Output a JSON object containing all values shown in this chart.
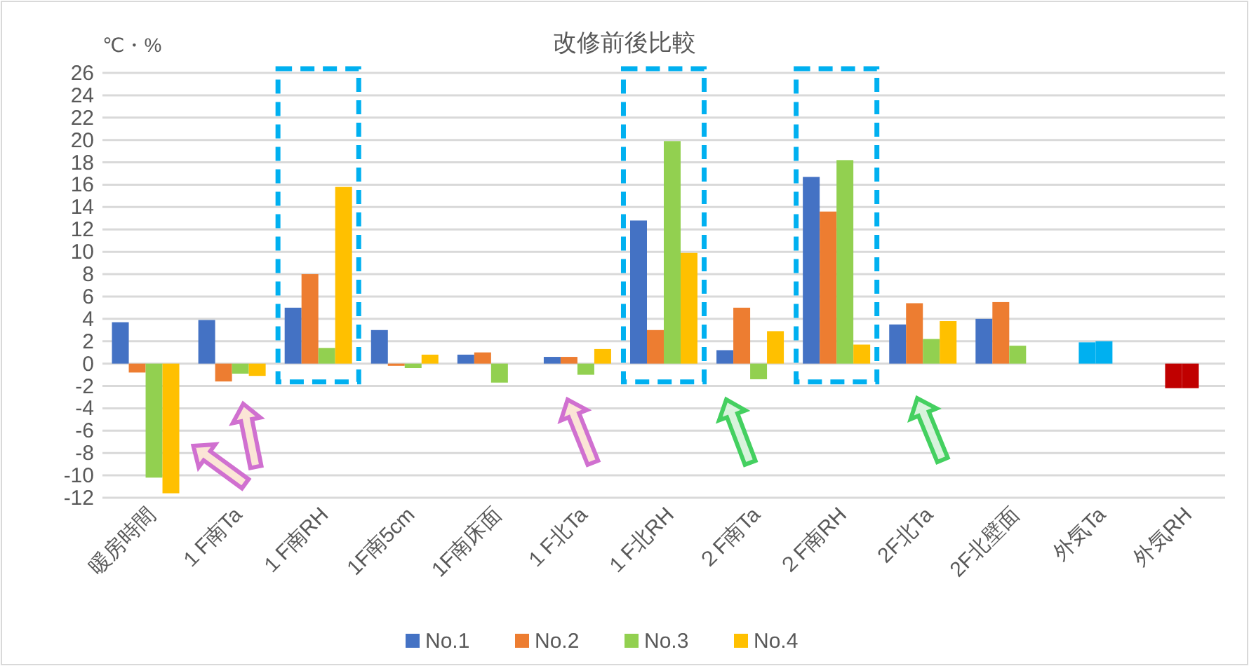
{
  "chart_data": {
    "type": "bar",
    "title": "改修前後比較",
    "ylabel": "℃・%",
    "categories": [
      "暖房時間",
      "１F南Ta",
      "１F南RH",
      "1F南5cm",
      "1F南床面",
      "１F北Ta",
      "１F北RH",
      "２F南Ta",
      "２F南RH",
      "2F北Ta",
      "2F北壁面",
      "外気Ta",
      "外気RH"
    ],
    "series": [
      {
        "name": "No.1",
        "color": "#4472c4",
        "values": [
          3.7,
          3.9,
          5.0,
          3.0,
          0.8,
          0.6,
          12.8,
          1.2,
          16.7,
          3.5,
          4.0,
          null,
          null
        ]
      },
      {
        "name": "No.2",
        "color": "#ed7d31",
        "colors": [
          "#ed7d31",
          "#ed7d31",
          "#ed7d31",
          "#ed7d31",
          "#ed7d31",
          "#ed7d31",
          "#ed7d31",
          "#ed7d31",
          "#ed7d31",
          "#ed7d31",
          "#ed7d31",
          "#00b0f0",
          "#c00000"
        ],
        "values": [
          -0.8,
          -1.6,
          8.0,
          -0.2,
          1.0,
          0.6,
          3.0,
          5.0,
          13.6,
          5.4,
          5.5,
          1.9,
          -2.2
        ]
      },
      {
        "name": "No.3",
        "color": "#92d050",
        "colors": [
          "#92d050",
          "#92d050",
          "#92d050",
          "#92d050",
          "#92d050",
          "#92d050",
          "#92d050",
          "#92d050",
          "#92d050",
          "#92d050",
          "#92d050",
          "#00b0f0",
          "#c00000"
        ],
        "values": [
          -10.2,
          -0.9,
          1.4,
          -0.4,
          -1.7,
          -1.0,
          19.9,
          -1.4,
          18.2,
          2.2,
          1.6,
          2.0,
          -2.2
        ]
      },
      {
        "name": "No.4",
        "color": "#ffc000",
        "values": [
          -11.6,
          -1.1,
          15.8,
          0.8,
          null,
          1.3,
          9.9,
          2.9,
          1.7,
          3.8,
          null,
          null,
          null
        ]
      }
    ],
    "ylim": [
      -12,
      26
    ],
    "yticks": [
      -12,
      -10,
      -8,
      -6,
      -4,
      -2,
      0,
      2,
      4,
      6,
      8,
      10,
      12,
      14,
      16,
      18,
      20,
      22,
      24,
      26
    ],
    "grid": "y",
    "legend": "bottom"
  }
}
